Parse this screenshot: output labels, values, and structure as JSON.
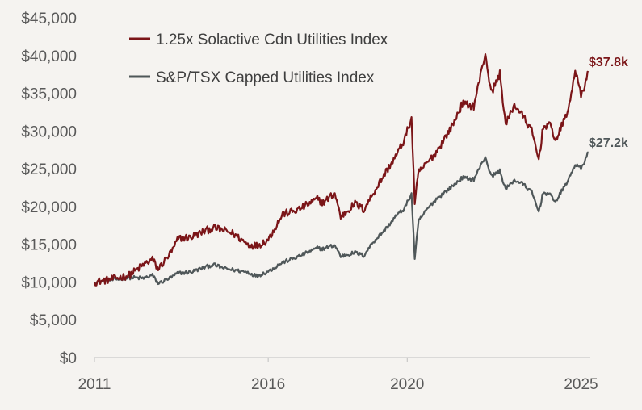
{
  "chart_data": {
    "type": "line",
    "title": "",
    "xlabel": "",
    "ylabel": "",
    "ylim": [
      0,
      45000
    ],
    "xlim": [
      "2011-01-01",
      "2025-03-31"
    ],
    "grid": false,
    "legend_position": "top-left",
    "y_ticks": [
      0,
      5000,
      10000,
      15000,
      20000,
      25000,
      30000,
      35000,
      40000,
      45000
    ],
    "y_tick_labels": [
      "$0",
      "$5,000",
      "$10,000",
      "$15,000",
      "$20,000",
      "$25,000",
      "$30,000",
      "$35,000",
      "$40,000",
      "$45,000"
    ],
    "x_tick_labels": [
      "2011",
      "2016",
      "2020",
      "2025"
    ],
    "x_tick_dates": [
      "2011-01-01",
      "2016-01-01",
      "2020-01-01",
      "2025-01-01"
    ],
    "series": [
      {
        "name": "1.25x Solactive Cdn Utilities Index",
        "color": "#7b1518",
        "end_label": "$37.8k",
        "points": [
          [
            "2011-01-01",
            10000
          ],
          [
            "2011-06-01",
            10300
          ],
          [
            "2012-01-01",
            10900
          ],
          [
            "2012-06-01",
            12300
          ],
          [
            "2012-09-01",
            13000
          ],
          [
            "2012-11-01",
            11700
          ],
          [
            "2013-04-01",
            14200
          ],
          [
            "2013-06-01",
            15800
          ],
          [
            "2013-10-01",
            15900
          ],
          [
            "2014-06-01",
            17200
          ],
          [
            "2014-10-01",
            16800
          ],
          [
            "2015-01-01",
            16400
          ],
          [
            "2015-06-01",
            15000
          ],
          [
            "2015-09-01",
            14800
          ],
          [
            "2016-01-01",
            15600
          ],
          [
            "2016-06-01",
            19000
          ],
          [
            "2016-11-01",
            19500
          ],
          [
            "2017-06-01",
            21000
          ],
          [
            "2017-08-01",
            20500
          ],
          [
            "2017-12-01",
            21800
          ],
          [
            "2018-02-01",
            18600
          ],
          [
            "2018-07-01",
            20400
          ],
          [
            "2018-10-01",
            19600
          ],
          [
            "2019-01-01",
            21600
          ],
          [
            "2019-06-01",
            24800
          ],
          [
            "2019-09-01",
            26600
          ],
          [
            "2019-12-01",
            28800
          ],
          [
            "2020-02-15",
            31700
          ],
          [
            "2020-03-20",
            20600
          ],
          [
            "2020-05-01",
            24500
          ],
          [
            "2020-08-01",
            25800
          ],
          [
            "2020-11-01",
            27200
          ],
          [
            "2021-05-01",
            31000
          ],
          [
            "2021-08-01",
            33600
          ],
          [
            "2021-12-01",
            33300
          ],
          [
            "2022-04-01",
            40300
          ],
          [
            "2022-06-01",
            35000
          ],
          [
            "2022-09-01",
            37600
          ],
          [
            "2022-11-01",
            30800
          ],
          [
            "2023-02-01",
            33500
          ],
          [
            "2023-05-01",
            32000
          ],
          [
            "2023-08-01",
            30000
          ],
          [
            "2023-10-15",
            26200
          ],
          [
            "2023-12-01",
            30600
          ],
          [
            "2024-02-01",
            30900
          ],
          [
            "2024-04-15",
            28800
          ],
          [
            "2024-06-01",
            30300
          ],
          [
            "2024-09-01",
            33300
          ],
          [
            "2024-11-01",
            38200
          ],
          [
            "2025-01-01",
            34600
          ],
          [
            "2025-03-20",
            37800
          ]
        ]
      },
      {
        "name": "S&P/TSX Capped Utilities Index",
        "color": "#4f5759",
        "end_label": "$27.2k",
        "points": [
          [
            "2011-01-01",
            10000
          ],
          [
            "2011-06-01",
            10200
          ],
          [
            "2012-01-01",
            10600
          ],
          [
            "2012-06-01",
            10500
          ],
          [
            "2012-09-01",
            10900
          ],
          [
            "2012-11-01",
            9800
          ],
          [
            "2013-04-01",
            10700
          ],
          [
            "2013-06-01",
            11200
          ],
          [
            "2013-10-01",
            11300
          ],
          [
            "2014-06-01",
            12300
          ],
          [
            "2014-10-01",
            11800
          ],
          [
            "2015-01-01",
            11600
          ],
          [
            "2015-06-01",
            11300
          ],
          [
            "2015-09-01",
            10800
          ],
          [
            "2016-01-01",
            11400
          ],
          [
            "2016-06-01",
            12600
          ],
          [
            "2016-11-01",
            13300
          ],
          [
            "2017-06-01",
            14500
          ],
          [
            "2017-08-01",
            14400
          ],
          [
            "2017-12-01",
            14900
          ],
          [
            "2018-02-01",
            13400
          ],
          [
            "2018-07-01",
            13900
          ],
          [
            "2018-10-01",
            13500
          ],
          [
            "2019-01-01",
            15200
          ],
          [
            "2019-06-01",
            17200
          ],
          [
            "2019-09-01",
            18700
          ],
          [
            "2019-12-01",
            19700
          ],
          [
            "2020-02-15",
            21700
          ],
          [
            "2020-03-20",
            13200
          ],
          [
            "2020-05-01",
            18100
          ],
          [
            "2020-08-01",
            19700
          ],
          [
            "2020-11-01",
            21000
          ],
          [
            "2021-05-01",
            22800
          ],
          [
            "2021-08-01",
            23800
          ],
          [
            "2021-12-01",
            23600
          ],
          [
            "2022-04-01",
            26600
          ],
          [
            "2022-06-01",
            24000
          ],
          [
            "2022-09-01",
            24700
          ],
          [
            "2022-11-01",
            22300
          ],
          [
            "2023-02-01",
            23500
          ],
          [
            "2023-05-01",
            23000
          ],
          [
            "2023-08-01",
            21900
          ],
          [
            "2023-10-15",
            19300
          ],
          [
            "2023-12-01",
            21900
          ],
          [
            "2024-02-01",
            21600
          ],
          [
            "2024-04-15",
            20700
          ],
          [
            "2024-06-01",
            21800
          ],
          [
            "2024-09-01",
            23800
          ],
          [
            "2024-11-01",
            25600
          ],
          [
            "2025-01-01",
            25000
          ],
          [
            "2025-03-20",
            27200
          ]
        ]
      }
    ]
  }
}
